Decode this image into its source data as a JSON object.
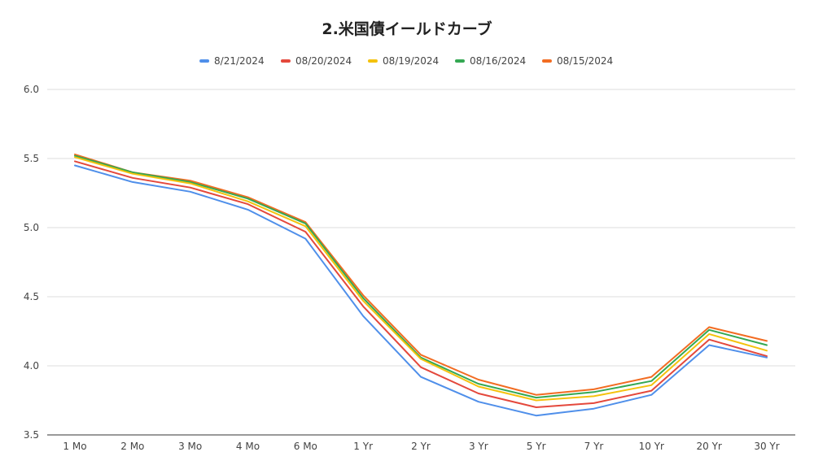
{
  "chart_data": {
    "type": "line",
    "title": "2.米国債イールドカーブ",
    "xlabel": "",
    "ylabel": "",
    "ylim": [
      3.5,
      6.0
    ],
    "yticks": [
      "3.5",
      "4.0",
      "4.5",
      "5.0",
      "5.5",
      "6.0"
    ],
    "grid": true,
    "legend_position": "top",
    "categories": [
      "1 Mo",
      "2 Mo",
      "3 Mo",
      "4 Mo",
      "6 Mo",
      "1 Yr",
      "2 Yr",
      "3 Yr",
      "5 Yr",
      "7 Yr",
      "10 Yr",
      "20 Yr",
      "30 Yr"
    ],
    "series": [
      {
        "name": "8/21/2024",
        "color": "#4f8fea",
        "values": [
          5.45,
          5.33,
          5.26,
          5.13,
          4.92,
          4.36,
          3.92,
          3.74,
          3.64,
          3.69,
          3.79,
          4.15,
          4.06
        ]
      },
      {
        "name": "08/20/2024",
        "color": "#e4483c",
        "values": [
          5.48,
          5.36,
          5.29,
          5.17,
          4.97,
          4.43,
          3.99,
          3.8,
          3.7,
          3.73,
          3.82,
          4.19,
          4.07
        ]
      },
      {
        "name": "08/19/2024",
        "color": "#f4c20d",
        "values": [
          5.51,
          5.39,
          5.32,
          5.19,
          5.01,
          4.47,
          4.05,
          3.85,
          3.75,
          3.78,
          3.86,
          4.23,
          4.11
        ]
      },
      {
        "name": "08/16/2024",
        "color": "#34a853",
        "values": [
          5.52,
          5.4,
          5.33,
          5.21,
          5.03,
          4.49,
          4.06,
          3.87,
          3.77,
          3.81,
          3.89,
          4.26,
          4.15
        ]
      },
      {
        "name": "08/15/2024",
        "color": "#f26c22",
        "values": [
          5.53,
          5.4,
          5.34,
          5.22,
          5.04,
          4.51,
          4.08,
          3.9,
          3.79,
          3.83,
          3.92,
          4.28,
          4.18
        ]
      }
    ]
  }
}
